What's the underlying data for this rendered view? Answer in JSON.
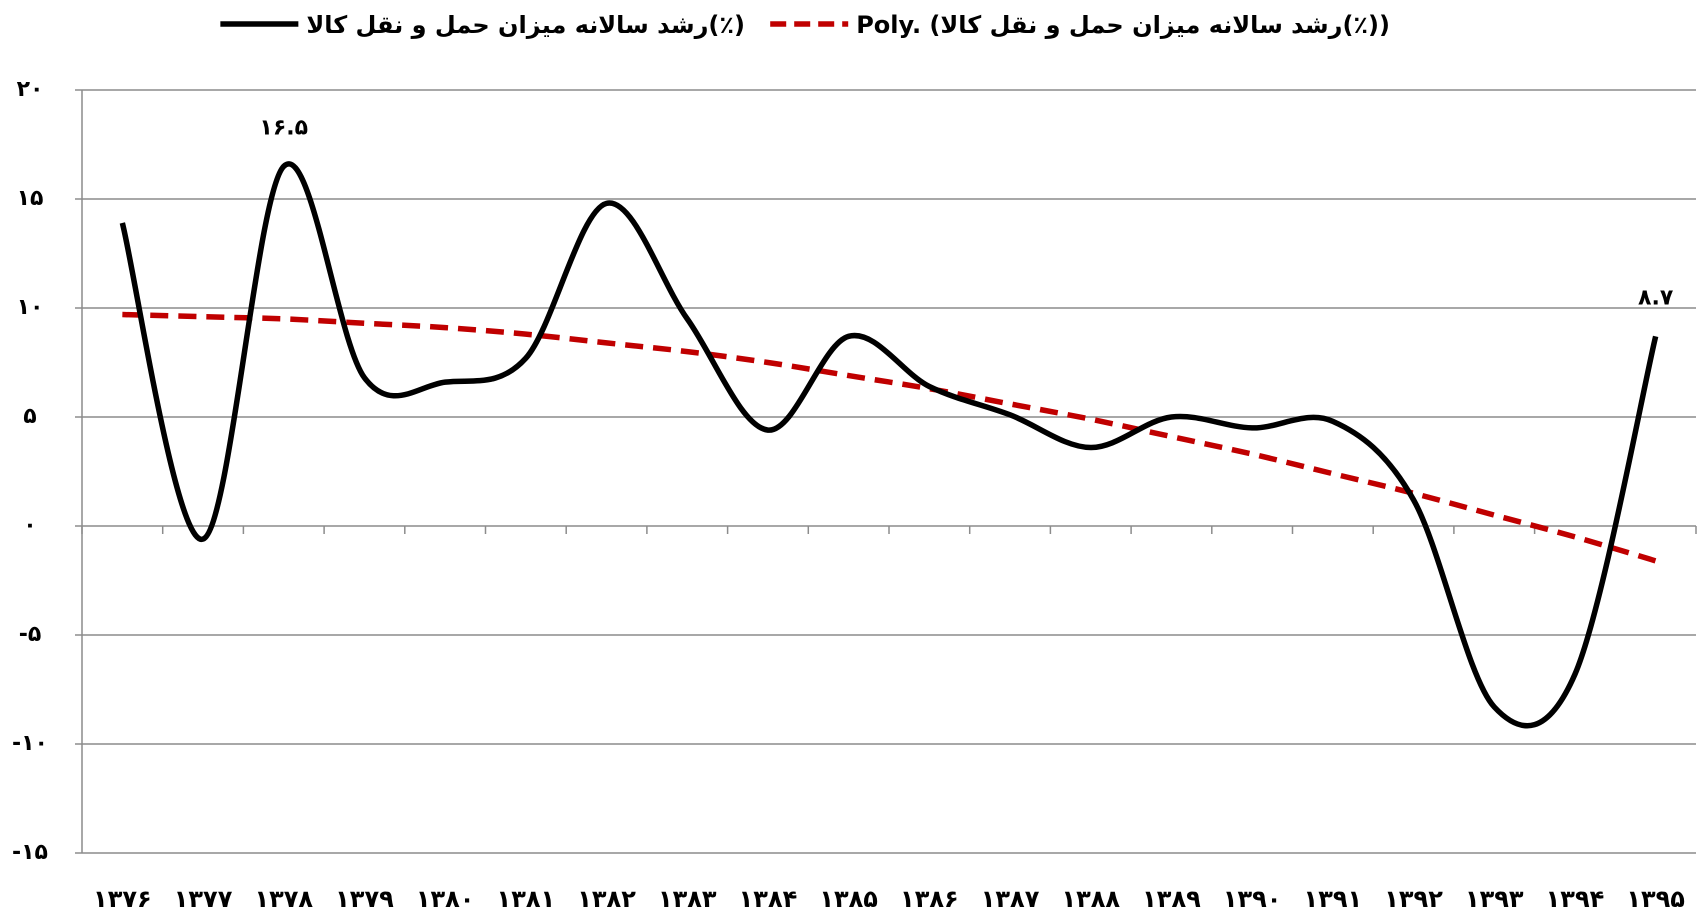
{
  "chart_data": {
    "type": "line",
    "categories": [
      "۱۳۷۶",
      "۱۳۷۷",
      "۱۳۷۸",
      "۱۳۷۹",
      "۱۳۸۰",
      "۱۳۸۱",
      "۱۳۸۲",
      "۱۳۸۳",
      "۱۳۸۴",
      "۱۳۸۵",
      "۱۳۸۶",
      "۱۳۸۷",
      "۱۳۸۸",
      "۱۳۸۹",
      "۱۳۹۰",
      "۱۳۹۱",
      "۱۳۹۲",
      "۱۳۹۳",
      "۱۳۹۴",
      "۱۳۹۵"
    ],
    "series": [
      {
        "name": "رشد سالانه میزان حمل و نقل کالا(٪)",
        "color": "#000000",
        "dash": false,
        "values": [
          13.9,
          -0.6,
          16.5,
          6.8,
          6.6,
          7.7,
          14.8,
          9.5,
          4.4,
          8.7,
          6.4,
          5.1,
          3.6,
          5.0,
          4.5,
          4.8,
          1.2,
          -8.3,
          -6.8,
          8.7
        ],
        "value_labels": [
          null,
          null,
          "۱۶.۵",
          null,
          null,
          null,
          null,
          null,
          null,
          null,
          null,
          null,
          null,
          null,
          null,
          null,
          null,
          null,
          null,
          "۸.۷"
        ]
      },
      {
        "name": "Poly. (رشد سالانه میزان حمل و نقل کالا(٪))",
        "color": "#c00000",
        "dash": true,
        "values": [
          9.7,
          9.6,
          9.5,
          9.3,
          9.1,
          8.8,
          8.4,
          8.0,
          7.5,
          6.9,
          6.3,
          5.6,
          4.9,
          4.1,
          3.3,
          2.4,
          1.5,
          0.5,
          -0.5,
          -1.6
        ]
      }
    ],
    "ylim": [
      -15,
      20
    ],
    "yticks": [
      {
        "value": -15,
        "label": "-۱۵"
      },
      {
        "value": -10,
        "label": "-۱۰"
      },
      {
        "value": -5,
        "label": "-۵"
      },
      {
        "value": 0,
        "label": "۰"
      },
      {
        "value": 5,
        "label": "۵"
      },
      {
        "value": 10,
        "label": "۱۰"
      },
      {
        "value": 15,
        "label": "۱۵"
      },
      {
        "value": 20,
        "label": "۲۰"
      }
    ],
    "grid": true,
    "legend": "top"
  }
}
